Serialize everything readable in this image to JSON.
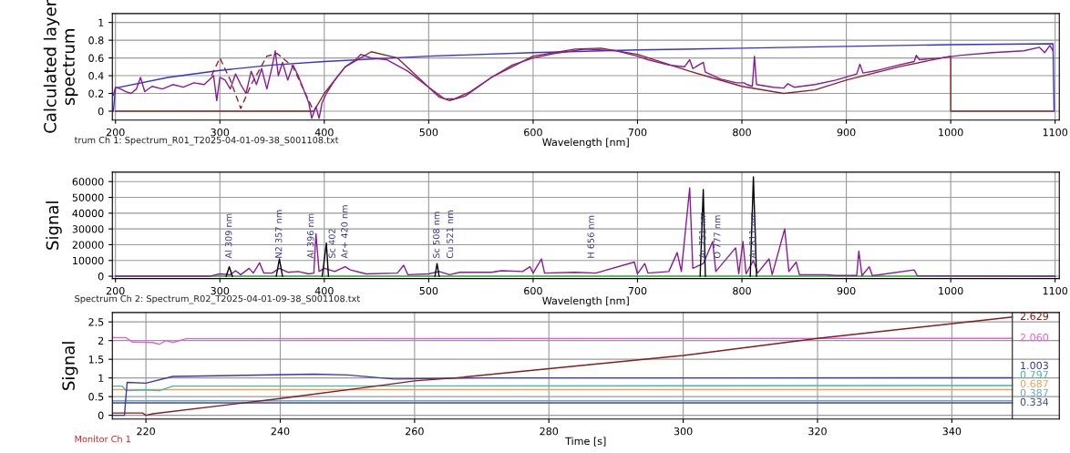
{
  "chart_data": [
    {
      "type": "line",
      "ylabel": "Calculated layer\nspectrum",
      "xlabel": "Wavelength [nm]",
      "xlim": [
        197,
        1104
      ],
      "xticks": [
        200,
        300,
        400,
        500,
        600,
        700,
        800,
        900,
        1000,
        1100
      ],
      "ylim": [
        -0.1,
        1.1
      ],
      "yticks": [
        0,
        0.2,
        0.4,
        0.6,
        0.8,
        1
      ],
      "grid": true,
      "legend": false,
      "annotations": [
        "trum Ch 1: Spectrum_R01_T2025-04-01-09-38_S001108.txt"
      ],
      "series": [
        {
          "color": "#3333dd",
          "x": [
            198,
            200,
            250,
            300,
            350,
            400,
            500,
            600,
            700,
            800,
            900,
            1000,
            1098,
            1099
          ],
          "values": [
            0,
            0.26,
            0.38,
            0.46,
            0.52,
            0.56,
            0.62,
            0.66,
            0.69,
            0.71,
            0.73,
            0.75,
            0.76,
            0
          ]
        },
        {
          "color": "#8b2525",
          "x": [
            200,
            390,
            400,
            420,
            445,
            470,
            490,
            510,
            520,
            535,
            560,
            600,
            640,
            665,
            700,
            750,
            800,
            840,
            870,
            900,
            950,
            1000,
            1000,
            1098
          ],
          "values": [
            0,
            0,
            0.2,
            0.5,
            0.67,
            0.6,
            0.38,
            0.16,
            0.12,
            0.17,
            0.38,
            0.62,
            0.7,
            0.71,
            0.64,
            0.45,
            0.28,
            0.2,
            0.24,
            0.35,
            0.5,
            0.62,
            0,
            0
          ]
        },
        {
          "color": "#8b2525",
          "line_style": "dashed",
          "x": [
            292,
            300,
            310,
            320,
            330,
            345,
            355,
            370,
            385,
            390
          ],
          "values": [
            0.4,
            0.6,
            0.35,
            0.03,
            0.3,
            0.62,
            0.65,
            0.5,
            0.12,
            0
          ]
        },
        {
          "color": "#8a1a9a",
          "x": [
            198,
            200,
            205,
            210,
            215,
            220,
            224,
            228,
            235,
            245,
            255,
            265,
            275,
            285,
            294,
            297,
            300,
            305,
            310,
            315,
            320,
            325,
            330,
            335,
            340,
            345,
            350,
            353,
            356,
            360,
            365,
            370,
            375,
            380,
            385,
            388,
            392,
            395,
            398,
            402,
            410,
            420,
            430,
            435,
            445,
            460,
            480,
            500,
            515,
            525,
            540,
            560,
            580,
            600,
            620,
            650,
            680,
            700,
            710,
            730,
            745,
            750,
            753,
            763,
            765,
            780,
            795,
            802,
            805,
            810,
            812,
            814,
            830,
            840,
            844,
            850,
            870,
            890,
            910,
            913,
            916,
            930,
            950,
            965,
            967,
            970,
            990,
            1010,
            1040,
            1070,
            1085,
            1090,
            1095,
            1098
          ],
          "values": [
            0.18,
            0.27,
            0.25,
            0.22,
            0.2,
            0.25,
            0.38,
            0.22,
            0.28,
            0.25,
            0.3,
            0.27,
            0.32,
            0.3,
            0.4,
            0.12,
            0.38,
            0.35,
            0.25,
            0.42,
            0.3,
            0.2,
            0.45,
            0.3,
            0.48,
            0.25,
            0.5,
            0.68,
            0.4,
            0.55,
            0.35,
            0.52,
            0.4,
            0.25,
            0.1,
            -0.08,
            0.05,
            -0.08,
            0.1,
            0.2,
            0.35,
            0.5,
            0.58,
            0.64,
            0.6,
            0.58,
            0.45,
            0.27,
            0.14,
            0.14,
            0.22,
            0.38,
            0.52,
            0.6,
            0.65,
            0.7,
            0.68,
            0.62,
            0.58,
            0.52,
            0.5,
            0.58,
            0.48,
            0.55,
            0.44,
            0.36,
            0.32,
            0.32,
            0.3,
            0.28,
            0.62,
            0.3,
            0.27,
            0.26,
            0.31,
            0.27,
            0.3,
            0.35,
            0.42,
            0.53,
            0.43,
            0.46,
            0.52,
            0.56,
            0.63,
            0.58,
            0.6,
            0.63,
            0.66,
            0.68,
            0.72,
            0.66,
            0.74,
            0.68
          ]
        }
      ]
    },
    {
      "type": "line",
      "ylabel": "Signal",
      "xlabel": "Wavelength [nm]",
      "xlim": [
        197,
        1104
      ],
      "xticks": [
        200,
        300,
        400,
        500,
        600,
        700,
        800,
        900,
        1000,
        1100
      ],
      "ylim": [
        -1500,
        66000
      ],
      "yticks": [
        0,
        10000,
        20000,
        30000,
        40000,
        50000,
        60000
      ],
      "grid": true,
      "legend": false,
      "annotations": [
        "Spectrum Ch 2: Spectrum_R02_T2025-04-01-09-38_S001108.txt",
        {
          "text": "Al 309 nm",
          "x": 309,
          "y": 0
        },
        {
          "text": "N2 357 nm",
          "x": 357,
          "y": 0
        },
        {
          "text": "Al 396 nm",
          "x": 396,
          "y": 0
        },
        {
          "text": "Sc 402",
          "x": 402,
          "y": 0
        },
        {
          "text": "Ar+ 420 nm",
          "x": 420,
          "y": 0
        },
        {
          "text": "Sc 508 nm",
          "x": 508,
          "y": 0
        },
        {
          "text": "Cu 521 nm",
          "x": 521,
          "y": 0
        },
        {
          "text": "H 656 nm",
          "x": 656,
          "y": 0
        },
        {
          "text": "Ar 751 nm",
          "x": 763,
          "y": 0
        },
        {
          "text": "O 777 nm",
          "x": 777,
          "y": 0
        },
        {
          "text": "Ar 811 nm",
          "x": 811,
          "y": 0
        }
      ],
      "series": [
        {
          "color": "#33bb33",
          "x": [
            200,
            1100
          ],
          "values": [
            0,
            0
          ]
        },
        {
          "color": "#8a1a9a",
          "x": [
            200,
            290,
            300,
            310,
            315,
            320,
            328,
            332,
            338,
            342,
            350,
            357,
            365,
            375,
            385,
            390,
            392,
            395,
            400,
            410,
            420,
            425,
            440,
            470,
            476,
            480,
            500,
            510,
            520,
            530,
            560,
            570,
            590,
            597,
            600,
            608,
            611,
            640,
            660,
            697,
            700,
            707,
            710,
            730,
            738,
            742,
            750,
            753,
            763,
            772,
            775,
            794,
            797,
            801,
            804,
            811,
            815,
            826,
            829,
            841,
            845,
            852,
            855,
            880,
            890,
            910,
            912,
            915,
            922,
            925,
            965,
            968,
            1100
          ],
          "values": [
            0,
            0,
            1500,
            1000,
            3500,
            1000,
            5000,
            2000,
            8500,
            2000,
            2000,
            5000,
            2500,
            3000,
            1500,
            2000,
            27000,
            3000,
            5000,
            3000,
            6000,
            4000,
            1500,
            2000,
            7000,
            1000,
            1500,
            3000,
            1000,
            2500,
            2500,
            3500,
            3000,
            6000,
            2000,
            11000,
            2000,
            2500,
            2000,
            9000,
            1500,
            8000,
            2000,
            3000,
            15000,
            3000,
            56000,
            5000,
            8000,
            22000,
            3000,
            18000,
            1500,
            22000,
            1500,
            10000,
            2000,
            11000,
            1000,
            30000,
            3000,
            9000,
            1000,
            1000,
            500,
            500,
            16000,
            300,
            6000,
            300,
            4000,
            300,
            0
          ]
        },
        {
          "color": "#000000",
          "x": [
            306,
            309,
            312,
            null,
            354,
            357,
            360,
            null,
            398,
            402,
            404,
            null,
            506,
            508,
            510,
            null,
            760,
            763,
            765,
            null,
            808,
            811,
            814
          ],
          "values": [
            0,
            6000,
            0,
            null,
            0,
            11000,
            0,
            null,
            0,
            21000,
            0,
            null,
            0,
            8000,
            0,
            null,
            0,
            55000,
            0,
            null,
            0,
            63000,
            0
          ]
        }
      ]
    },
    {
      "type": "line",
      "ylabel": "Signal",
      "xlabel": "Time [s]",
      "xlim": [
        215,
        356
      ],
      "xticks": [
        220,
        240,
        260,
        280,
        300,
        320,
        340
      ],
      "ylim": [
        -0.1,
        2.75
      ],
      "yticks": [
        0,
        0.5,
        1,
        1.5,
        2,
        2.5
      ],
      "grid": true,
      "legend": false,
      "annotations": [
        "Monitor Ch 1"
      ],
      "ref_lines": [
        {
          "axis": "x",
          "value": 349,
          "color": "#444444"
        }
      ],
      "series": [
        {
          "color": "#3b4ba0",
          "x": [
            215,
            349
          ],
          "values": [
            0.334,
            0.334
          ],
          "value_labels": [
            null,
            "0.334"
          ]
        },
        {
          "color": "#6aa8c8",
          "x": [
            215,
            349
          ],
          "values": [
            0.387,
            0.387
          ],
          "value_labels": [
            null,
            "0.387"
          ]
        },
        {
          "color": "#f0a050",
          "x": [
            215,
            349
          ],
          "values": [
            0.687,
            0.687
          ],
          "value_labels": [
            null,
            "0.687"
          ]
        },
        {
          "color": "#40b8b0",
          "x": [
            215,
            216.5,
            217,
            220,
            222,
            224,
            349
          ],
          "values": [
            0.78,
            0.78,
            0.66,
            0.68,
            0.66,
            0.78,
            0.797
          ],
          "value_labels": [
            null,
            null,
            null,
            null,
            null,
            null,
            "0.797"
          ]
        },
        {
          "color": "#3a3aa0",
          "x": [
            215,
            216.8,
            217.2,
            220,
            224,
            245,
            250,
            257,
            270,
            349
          ],
          "values": [
            0,
            0,
            0.88,
            0.86,
            1.04,
            1.1,
            1.08,
            0.97,
            1.0,
            1.003
          ],
          "value_labels": [
            null,
            null,
            null,
            null,
            null,
            null,
            null,
            null,
            null,
            "1.003"
          ]
        },
        {
          "color": "#e060e0",
          "x": [
            215,
            217,
            218,
            221,
            222,
            223,
            224,
            226,
            349
          ],
          "values": [
            2.08,
            2.08,
            1.96,
            1.95,
            1.9,
            2.0,
            1.95,
            2.05,
            2.06
          ],
          "value_labels": [
            null,
            null,
            null,
            null,
            null,
            null,
            null,
            null,
            "2.060"
          ]
        },
        {
          "color": "#8b1a1a",
          "x": [
            215,
            219.5,
            220,
            221,
            240,
            255,
            260,
            266,
            300,
            320,
            349
          ],
          "values": [
            0.06,
            0.06,
            0,
            0.04,
            0.45,
            0.8,
            0.92,
            1.0,
            1.6,
            2.06,
            2.629
          ],
          "value_labels": [
            null,
            null,
            null,
            null,
            null,
            null,
            null,
            null,
            null,
            null,
            "2.629"
          ]
        }
      ]
    }
  ]
}
